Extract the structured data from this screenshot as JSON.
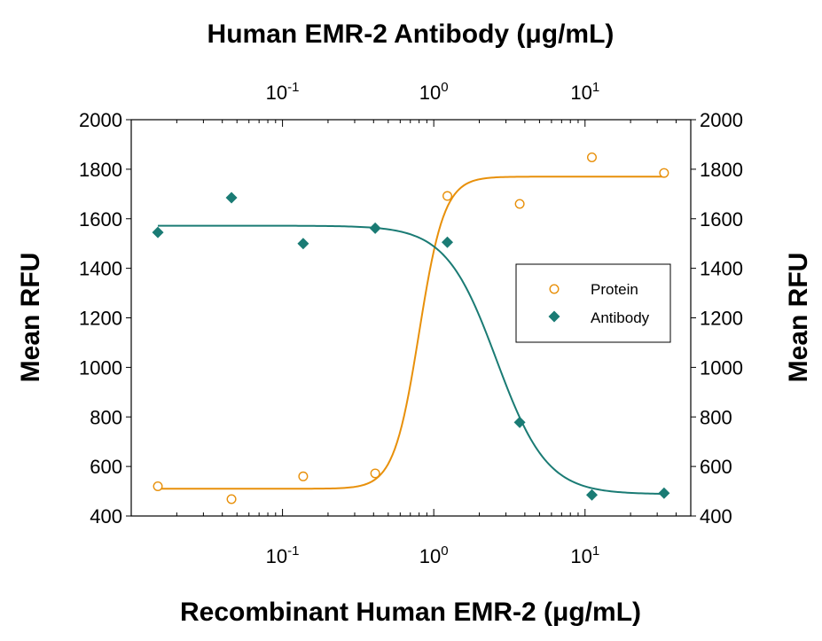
{
  "chart_data": {
    "type": "scatter",
    "title": "Human EMR-2 Antibody (μg/mL)",
    "xlabel": "Recombinant Human EMR-2 (μg/mL)",
    "ylabel_left": "Mean RFU",
    "ylabel_right": "Mean RFU",
    "x_scale": "log",
    "xlim": [
      0.01,
      50
    ],
    "ylim": [
      400,
      2000
    ],
    "y_ticks": [
      400,
      600,
      800,
      1000,
      1200,
      1400,
      1600,
      1800,
      2000
    ],
    "x_ticks_bottom": [
      {
        "value": 0.1,
        "base": "10",
        "exp": "-1"
      },
      {
        "value": 1,
        "base": "10",
        "exp": "0"
      },
      {
        "value": 10,
        "base": "10",
        "exp": "1"
      }
    ],
    "x_ticks_top": [
      {
        "value": 0.1,
        "base": "10",
        "exp": "-1"
      },
      {
        "value": 1,
        "base": "10",
        "exp": "0"
      },
      {
        "value": 10,
        "base": "10",
        "exp": "1"
      }
    ],
    "grid": false,
    "legend_position": "right",
    "series": [
      {
        "name": "Protein",
        "marker": "open-circle",
        "color": "#E8900A",
        "points": [
          {
            "x": 0.015,
            "y": 520
          },
          {
            "x": 0.046,
            "y": 468
          },
          {
            "x": 0.137,
            "y": 560
          },
          {
            "x": 0.41,
            "y": 572
          },
          {
            "x": 1.23,
            "y": 1692
          },
          {
            "x": 3.7,
            "y": 1660
          },
          {
            "x": 11.1,
            "y": 1848
          },
          {
            "x": 33.3,
            "y": 1785
          }
        ],
        "fit": {
          "bottom": 510,
          "top": 1770,
          "ec50": 0.8,
          "hill": 5.2
        }
      },
      {
        "name": "Antibody",
        "marker": "filled-diamond",
        "color": "#1A7B74",
        "points": [
          {
            "x": 0.015,
            "y": 1545
          },
          {
            "x": 0.046,
            "y": 1685
          },
          {
            "x": 0.137,
            "y": 1500
          },
          {
            "x": 0.41,
            "y": 1562
          },
          {
            "x": 1.23,
            "y": 1505
          },
          {
            "x": 3.7,
            "y": 778
          },
          {
            "x": 11.1,
            "y": 485
          },
          {
            "x": 33.3,
            "y": 492
          }
        ],
        "fit": {
          "bottom": 488,
          "top": 1572,
          "ec50": 2.6,
          "hill": -2.6
        }
      }
    ]
  }
}
